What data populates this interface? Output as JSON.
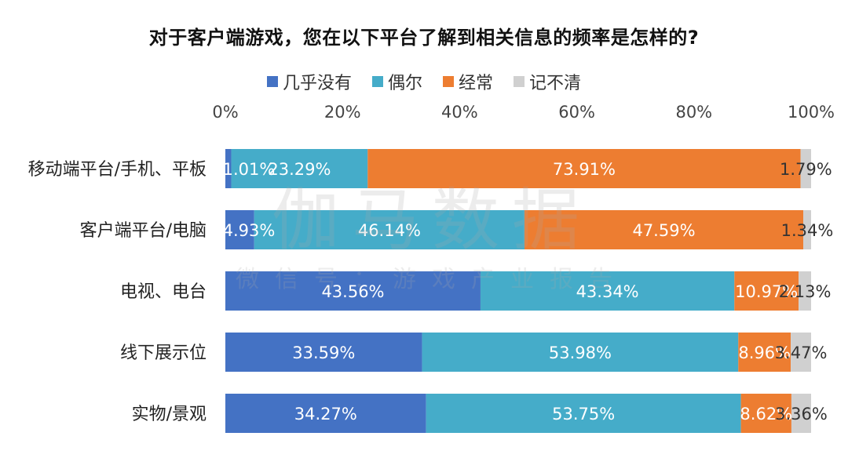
{
  "chart_data": {
    "type": "bar",
    "orientation": "horizontal",
    "stacked": true,
    "title": "对于客户端游戏，您在以下平台了解到相关信息的频率是怎样的?",
    "categories": [
      "移动端平台/手机、平板",
      "客户端平台/电脑",
      "电视、电台",
      "线下展示位",
      "实物/景观"
    ],
    "series": [
      {
        "name": "几乎没有",
        "color": "#4472c4",
        "values": [
          1.01,
          4.93,
          43.56,
          33.59,
          34.27
        ],
        "labels": [
          "1.01%",
          "4.93%",
          "43.56%",
          "33.59%",
          "34.27%"
        ]
      },
      {
        "name": "偶尔",
        "color": "#45acc9",
        "values": [
          23.29,
          46.14,
          43.34,
          53.98,
          53.75
        ],
        "labels": [
          "23.29%",
          "46.14%",
          "43.34%",
          "53.98%",
          "53.75%"
        ]
      },
      {
        "name": "经常",
        "color": "#ed7d31",
        "values": [
          73.91,
          47.59,
          10.97,
          8.96,
          8.62
        ],
        "labels": [
          "73.91%",
          "47.59%",
          "10.97%",
          "8.96%",
          "8.62%"
        ]
      },
      {
        "name": "记不清",
        "color": "#d0d0d0",
        "values": [
          1.79,
          1.34,
          2.13,
          3.47,
          3.36
        ],
        "labels": [
          "1.79%",
          "1.34%",
          "2.13%",
          "3.47%",
          "3.36%"
        ]
      }
    ],
    "xlim": [
      0,
      100
    ],
    "xticks": [
      "0%",
      "20%",
      "40%",
      "60%",
      "80%",
      "100%"
    ],
    "legend_position": "top",
    "grid": false
  },
  "watermark": {
    "line1": "伽马数据",
    "line2": "微信号：游戏产业报告"
  }
}
